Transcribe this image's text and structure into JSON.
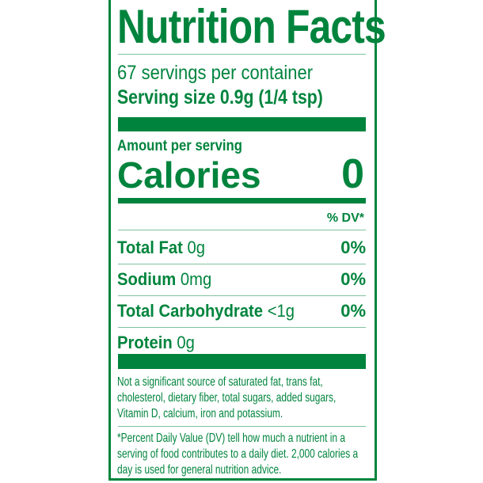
{
  "title": "Nutrition Facts",
  "servings_per_container": "67 servings per container",
  "serving_size": "Serving size 0.9g (1/4 tsp)",
  "amount_per_serving": "Amount per serving",
  "calories": {
    "label": "Calories",
    "value": "0"
  },
  "dv_header": "% DV*",
  "nutrients": [
    {
      "name": "Total Fat",
      "amount": "0g",
      "dv": "0%"
    },
    {
      "name": "Sodium",
      "amount": "0mg",
      "dv": "0%"
    },
    {
      "name": "Total Carbohydrate",
      "amount": "<1g",
      "dv": "0%"
    },
    {
      "name": "Protein",
      "amount": "0g",
      "dv": ""
    }
  ],
  "not_significant": "Not a significant source of saturated fat, trans fat, cholesterol, dietary fiber, total sugars, added sugars, Vitamin D, calcium, iron and potassium.",
  "footnote": "*Percent Daily Value (DV) tell how much a nutrient in a serving of food contributes to a daily diet. 2,000 calories a day is used for general nutrition advice.",
  "colors": {
    "label_green": "#00843d",
    "background": "#ffffff"
  }
}
